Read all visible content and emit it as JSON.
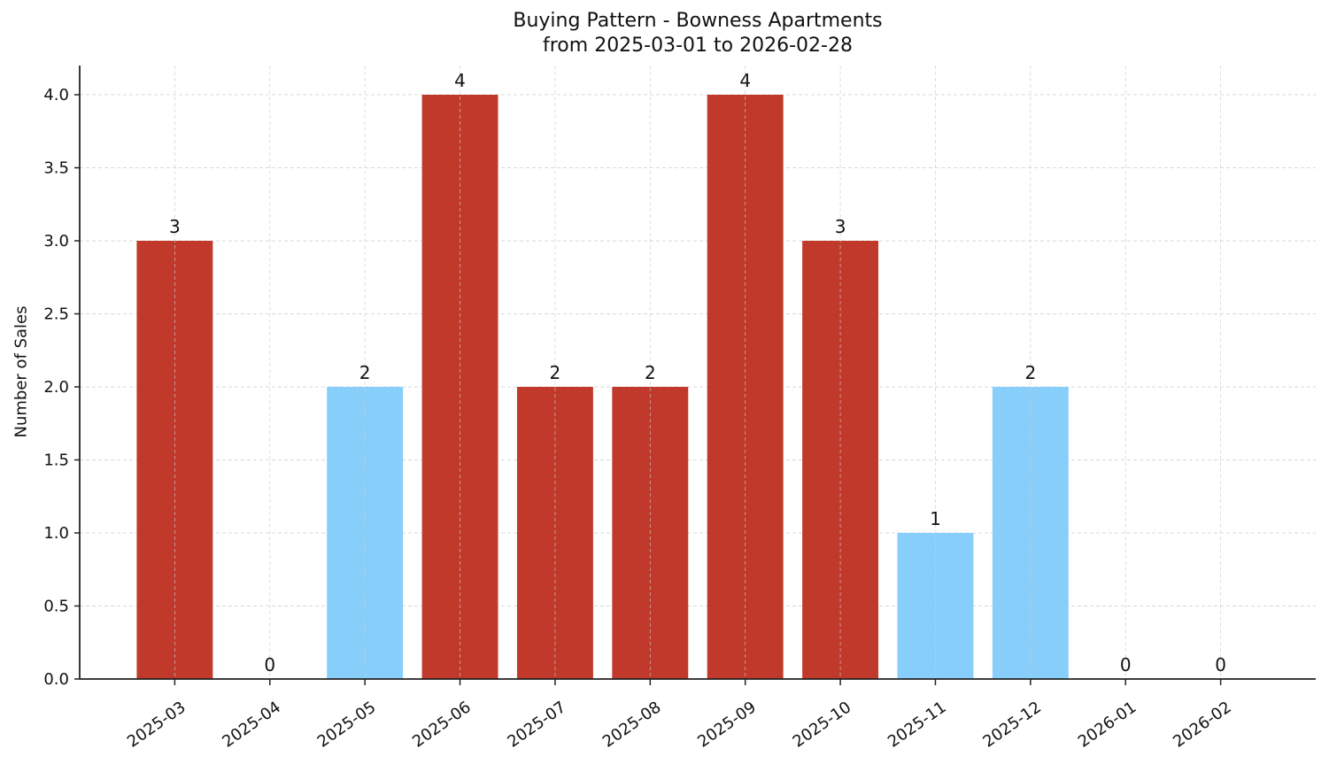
{
  "chart_data": {
    "type": "bar",
    "title": "Buying Pattern - Bowness Apartments",
    "subtitle": "from 2025-03-01 to 2026-02-28",
    "xlabel": "",
    "ylabel": "Number of Sales",
    "categories": [
      "2025-03",
      "2025-04",
      "2025-05",
      "2025-06",
      "2025-07",
      "2025-08",
      "2025-09",
      "2025-10",
      "2025-11",
      "2025-12",
      "2026-01",
      "2026-02"
    ],
    "values": [
      3,
      0,
      2,
      4,
      2,
      2,
      4,
      3,
      1,
      2,
      0,
      0
    ],
    "bar_colors": [
      "#c0392b",
      "#c0392b",
      "#87cefa",
      "#c0392b",
      "#c0392b",
      "#c0392b",
      "#c0392b",
      "#c0392b",
      "#87cefa",
      "#87cefa",
      "#c0392b",
      "#c0392b"
    ],
    "data_labels": [
      "3",
      "0",
      "2",
      "4",
      "2",
      "2",
      "4",
      "3",
      "1",
      "2",
      "0",
      "0"
    ],
    "ylim": [
      0,
      4.2
    ],
    "yticks": [
      "0.0",
      "0.5",
      "1.0",
      "1.5",
      "2.0",
      "2.5",
      "3.0",
      "3.5",
      "4.0"
    ],
    "grid": true,
    "legend": null
  }
}
